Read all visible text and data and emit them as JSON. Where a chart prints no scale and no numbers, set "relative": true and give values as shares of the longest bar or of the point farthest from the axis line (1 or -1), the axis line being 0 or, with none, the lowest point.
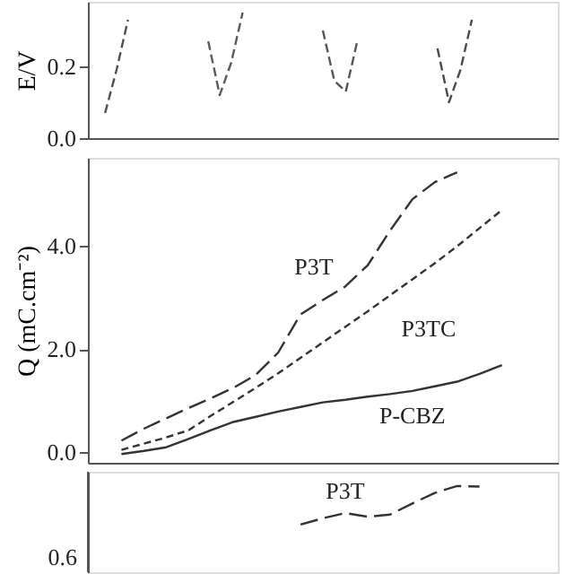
{
  "chart_data": [
    {
      "type": "line",
      "ylabel": "E/V",
      "categories": [
        null,
        null,
        null,
        null,
        null,
        null,
        null,
        null,
        null,
        null,
        null,
        null,
        null,
        null,
        null,
        null,
        null,
        null,
        null,
        null,
        null,
        null,
        null,
        null,
        null,
        null,
        null,
        null,
        null,
        null,
        null,
        null,
        null,
        null,
        null,
        null,
        null,
        null,
        null,
        null,
        null
      ],
      "ylim": [
        0.0,
        0.38
      ],
      "yticks": [
        {
          "value": 0,
          "label": "0.0"
        },
        {
          "value": 0.2,
          "label": "0.2"
        }
      ],
      "tick_labels": "y",
      "grid": false,
      "line_style": "dashed",
      "series": [
        {
          "color": "#505050",
          "values": [
            null,
            0.07,
            0.19,
            0.33,
            null,
            null,
            null,
            null,
            null,
            null,
            null,
            null,
            null,
            null,
            null,
            null,
            null,
            null,
            null,
            null,
            null,
            null,
            null,
            null,
            null,
            null,
            null,
            null,
            null,
            null,
            null,
            null,
            null,
            null,
            null,
            null,
            null,
            null,
            null,
            null,
            null
          ]
        },
        {
          "color": "#5a5a5a",
          "values": [
            null,
            null,
            null,
            null,
            null,
            null,
            null,
            null,
            null,
            null,
            0.27,
            0.12,
            0.21,
            0.35,
            null,
            null,
            null,
            null,
            null,
            null,
            null,
            null,
            null,
            null,
            null,
            null,
            null,
            null,
            null,
            null,
            null,
            null,
            null,
            null,
            null,
            null,
            null,
            null,
            null,
            null,
            null
          ]
        },
        {
          "color": "#555555",
          "values": [
            null,
            null,
            null,
            null,
            null,
            null,
            null,
            null,
            null,
            null,
            null,
            null,
            null,
            null,
            null,
            null,
            null,
            null,
            null,
            null,
            0.3,
            0.16,
            0.13,
            0.27,
            null,
            null,
            null,
            null,
            null,
            null,
            null,
            null,
            null,
            null,
            null,
            null,
            null,
            null,
            null,
            null,
            null
          ]
        },
        {
          "color": "#4b4b4b",
          "values": [
            null,
            null,
            null,
            null,
            null,
            null,
            null,
            null,
            null,
            null,
            null,
            null,
            null,
            null,
            null,
            null,
            null,
            null,
            null,
            null,
            null,
            null,
            null,
            null,
            null,
            null,
            null,
            null,
            null,
            null,
            0.25,
            0.1,
            0.19,
            0.33,
            null,
            null,
            null,
            null,
            null,
            null,
            null
          ]
        }
      ]
    },
    {
      "type": "line",
      "ylabel": "Q (mC.cm⁻²)",
      "categories": [
        null,
        null,
        null,
        null,
        null,
        null,
        null,
        null,
        null,
        null,
        null,
        null,
        null,
        null,
        null,
        null,
        null,
        null,
        null,
        null,
        null
      ],
      "ylim": [
        -0.2,
        5.7
      ],
      "yticks": [
        {
          "value": 0,
          "label": "0.0"
        },
        {
          "value": 2,
          "label": "2.0"
        },
        {
          "value": 4,
          "label": "4.0"
        }
      ],
      "tick_labels": "y",
      "grid": false,
      "series": [
        {
          "name": "P3T",
          "color": "#333333",
          "line_style": "dashed",
          "values": [
            null,
            0.23,
            0.46,
            0.66,
            0.86,
            1.05,
            1.25,
            1.5,
            1.93,
            2.67,
            2.95,
            3.21,
            3.62,
            4.29,
            4.9,
            5.23,
            5.42,
            null,
            null,
            null,
            null
          ]
        },
        {
          "name": "P3TC",
          "color": "#333333",
          "line_style": "dotted",
          "values": [
            null,
            0.05,
            0.17,
            0.29,
            0.43,
            0.71,
            0.98,
            1.25,
            1.53,
            1.83,
            2.13,
            2.43,
            2.73,
            3.04,
            3.35,
            3.66,
            3.99,
            4.34,
            4.69,
            null,
            null
          ]
        },
        {
          "name": "P-CBZ",
          "color": "#333333",
          "line_style": "solid",
          "values": [
            null,
            -0.03,
            0.03,
            0.1,
            0.26,
            0.43,
            0.59,
            0.69,
            0.79,
            0.88,
            0.97,
            1.02,
            1.08,
            1.13,
            1.19,
            1.28,
            1.37,
            1.52,
            1.69,
            null,
            null
          ]
        }
      ]
    },
    {
      "type": "line",
      "relative": true,
      "categories": [
        null,
        null,
        null,
        null,
        null,
        null,
        null,
        null,
        null,
        null,
        null,
        null,
        null,
        null,
        null,
        null,
        null,
        null,
        null,
        null,
        null
      ],
      "tick_labels": false,
      "grid": false,
      "annotations": [
        "0.6"
      ],
      "series": [
        {
          "name": "P3T",
          "color": "#333333",
          "line_style": "dashed",
          "values": [
            null,
            null,
            null,
            null,
            null,
            null,
            null,
            null,
            null,
            -1,
            -0.88,
            -0.78,
            -0.85,
            -0.81,
            -0.6,
            -0.4,
            -0.27,
            -0.28,
            null,
            null,
            null
          ]
        }
      ]
    }
  ]
}
